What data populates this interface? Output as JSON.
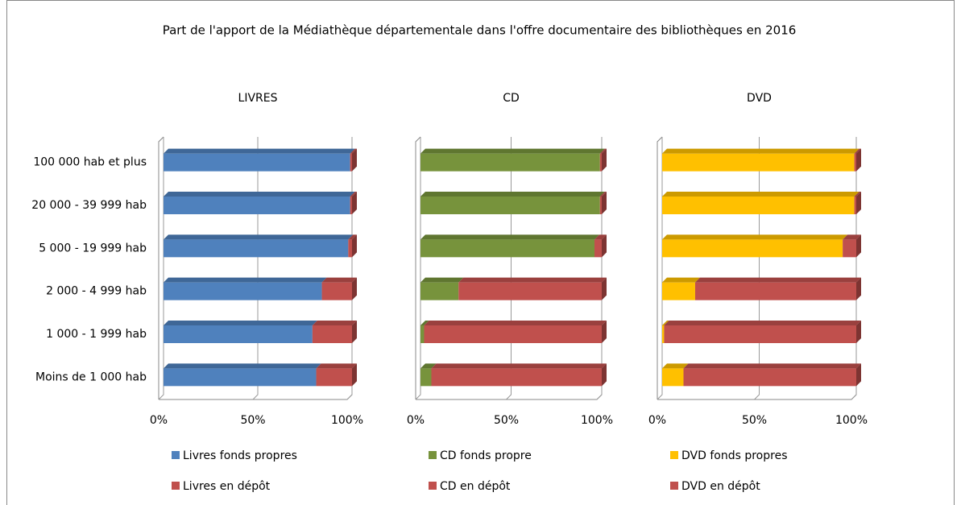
{
  "title": "Part de l'apport de la Médiathèque départementale dans l'offre documentaire des bibliothèques en 2016",
  "chart_data": [
    {
      "type": "bar",
      "orientation": "horizontal",
      "stacked": true,
      "title": "LIVRES",
      "categories": [
        "100 000 hab et plus",
        "20 000 - 39 999 hab",
        "5 000 - 19 999 hab",
        "2 000 - 4 999 hab",
        "1 000 - 1 999 hab",
        "Moins de 1 000 hab"
      ],
      "series": [
        {
          "name": "Livres fonds propres",
          "color": "#4f81bd",
          "values": [
            99,
            99,
            98,
            84,
            79,
            81
          ]
        },
        {
          "name": "Livres en dépôt",
          "color": "#c0504d",
          "values": [
            1,
            1,
            2,
            16,
            21,
            19
          ]
        }
      ],
      "xlim": [
        0,
        100
      ],
      "xticks": [
        {
          "value": 0,
          "label": "0%"
        },
        {
          "value": 50,
          "label": "50%"
        },
        {
          "value": 100,
          "label": "100%"
        }
      ],
      "grid": true
    },
    {
      "type": "bar",
      "orientation": "horizontal",
      "stacked": true,
      "title": "CD",
      "series": [
        {
          "name": "CD fonds propre",
          "color": "#77933c",
          "values": [
            99,
            99,
            96,
            21,
            2,
            6
          ]
        },
        {
          "name": "CD en dépôt",
          "color": "#c0504d",
          "values": [
            1,
            1,
            4,
            79,
            98,
            94
          ]
        }
      ],
      "xlim": [
        0,
        100
      ],
      "xticks": [
        {
          "value": 0,
          "label": "0%"
        },
        {
          "value": 50,
          "label": "50%"
        },
        {
          "value": 100,
          "label": "100%"
        }
      ],
      "grid": true
    },
    {
      "type": "bar",
      "orientation": "horizontal",
      "stacked": true,
      "title": "DVD",
      "series": [
        {
          "name": "DVD fonds propres",
          "color": "#ffc000",
          "values": [
            99,
            99,
            93,
            17,
            1,
            11
          ]
        },
        {
          "name": "DVD en dépôt",
          "color": "#c0504d",
          "values": [
            1,
            1,
            7,
            83,
            99,
            89
          ]
        }
      ],
      "xlim": [
        0,
        100
      ],
      "xticks": [
        {
          "value": 0,
          "label": "0%"
        },
        {
          "value": 50,
          "label": "50%"
        },
        {
          "value": 100,
          "label": "100%"
        }
      ],
      "grid": true
    }
  ]
}
